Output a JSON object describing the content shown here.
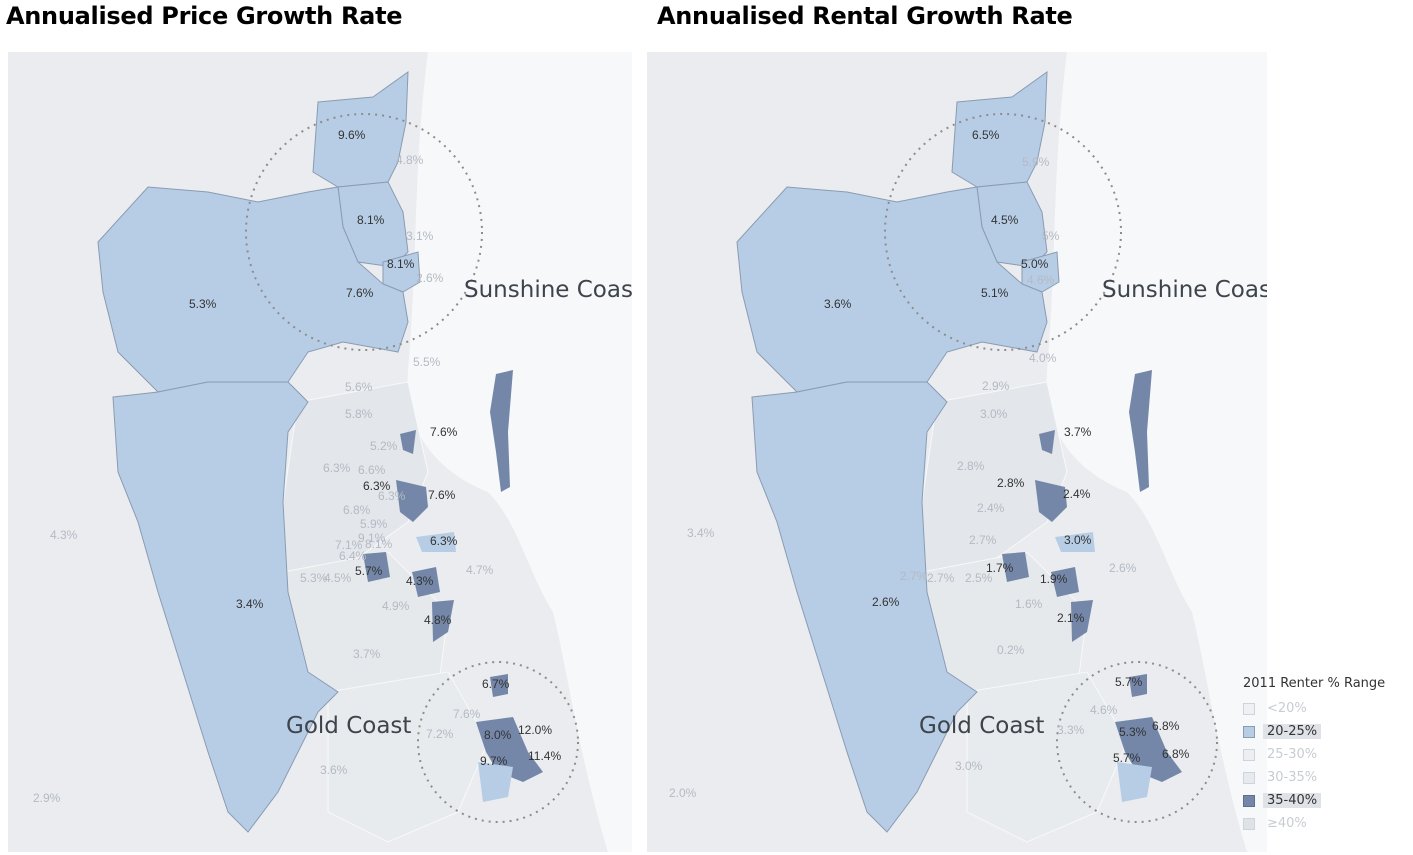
{
  "titles": {
    "left": "Annualised Price Growth Rate",
    "right": "Annualised Rental Growth Rate"
  },
  "regions": {
    "sunshine_coast": "Sunshine Coast",
    "gold_coast": "Gold Coast"
  },
  "colors": {
    "background": "#f3f4f6",
    "land": "#e9ebee",
    "range_20_25": "#b7cde5",
    "range_35_40": "#7487a8",
    "faint_label": "#b4bac4",
    "circle": "#888888"
  },
  "price_map": {
    "highlighted_labels": [
      "9.6%",
      "8.1%",
      "8.1%",
      "7.6%",
      "5.3%",
      "3.4%",
      "7.6%",
      "6.3%",
      "7.6%",
      "6.3%",
      "5.7%",
      "4.3%",
      "4.8%",
      "6.7%",
      "8.0%",
      "12.0%",
      "9.7%",
      "11.4%"
    ],
    "faint_labels": [
      "4.8%",
      "3.1%",
      "2.6%",
      "5.5%",
      "5.6%",
      "5.8%",
      "5.2%",
      "6.3%",
      "6.6%",
      "6.3%",
      "6.8%",
      "5.9%",
      "9.1%",
      "7.1%",
      "8.1%",
      "6.4%",
      "5.3%",
      "4.5%",
      "4.9%",
      "4.7%",
      "4.3%",
      "3.7%",
      "7.6%",
      "7.2%",
      "3.6%",
      "2.9%",
      "4.3%"
    ]
  },
  "rental_map": {
    "highlighted_labels": [
      "6.5%",
      "4.5%",
      "5.0%",
      "5.1%",
      "3.6%",
      "2.6%",
      "3.7%",
      "2.8%",
      "2.4%",
      "3.0%",
      "1.7%",
      "1.9%",
      "2.1%",
      "5.7%",
      "5.3%",
      "6.8%",
      "5.7%",
      "6.8%"
    ],
    "faint_labels": [
      "5.9%",
      "5%",
      "4.6%",
      "4.0%",
      "2.9%",
      "3.0%",
      "2.8%",
      "2.4%",
      "2.7%",
      "2.5%",
      "2.7%",
      "1.6%",
      "0.2%",
      "2.6%",
      "4.6%",
      "3.3%",
      "3.0%",
      "2.0%",
      "3.4%",
      "2.7%"
    ]
  },
  "legend": {
    "title": "2011 Renter % Range",
    "items": [
      {
        "label": "<20%",
        "color": "#eef0f3",
        "active": false
      },
      {
        "label": "20-25%",
        "color": "#b7cde5",
        "active": true
      },
      {
        "label": "25-30%",
        "color": "#eceef1",
        "active": false
      },
      {
        "label": "30-35%",
        "color": "#e7eaee",
        "active": false
      },
      {
        "label": "35-40%",
        "color": "#7487a8",
        "active": true
      },
      {
        "label": "≥40%",
        "color": "#dfe3e8",
        "active": false
      }
    ]
  }
}
